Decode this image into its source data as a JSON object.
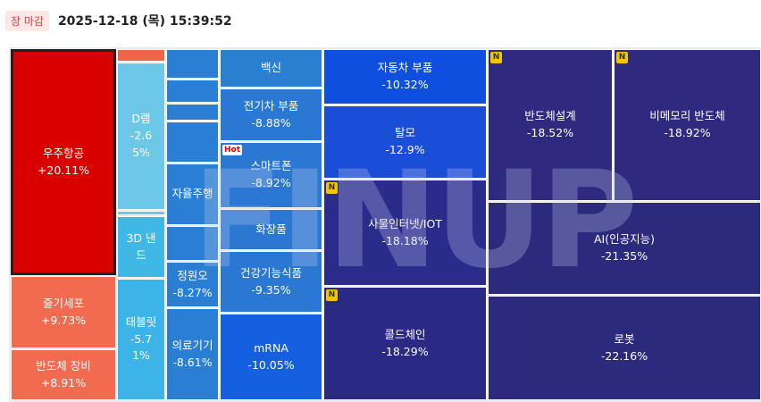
{
  "header": {
    "status": "장 마감",
    "datetime": "2025-12-18 (목) 15:39:52"
  },
  "watermark": "FINUP",
  "tiles": [
    {
      "name": "우주항공",
      "change": "+20.11%"
    },
    {
      "name": "줄기세포",
      "change": "+9.73%"
    },
    {
      "name": "반도체 장비",
      "change": "+8.91%"
    },
    {
      "name": "D램",
      "change": "-2.65%"
    },
    {
      "name": "3D 낸드"
    },
    {
      "name": "태블릿",
      "change": "-5.71%"
    },
    {
      "name": "자율주행"
    },
    {
      "name": "정원오",
      "change": "-8.27%"
    },
    {
      "name": "의료기기",
      "change": "-8.61%"
    },
    {
      "name": "백신"
    },
    {
      "name": "전기차 부품",
      "change": "-8.88%"
    },
    {
      "name": "스마트폰",
      "change": "-8.92%",
      "badge": "Hot"
    },
    {
      "name": "화장품"
    },
    {
      "name": "건강기능식품",
      "change": "-9.35%"
    },
    {
      "name": "mRNA",
      "change": "-10.05%"
    },
    {
      "name": "자동차 부품",
      "change": "-10.32%"
    },
    {
      "name": "탈모",
      "change": "-12.9%"
    },
    {
      "name": "사물인터넷/IOT",
      "change": "-18.18%",
      "badge": "N"
    },
    {
      "name": "콜드체인",
      "change": "-18.29%",
      "badge": "N"
    },
    {
      "name": "반도체설계",
      "change": "-18.52%",
      "badge": "N"
    },
    {
      "name": "비메모리 반도체",
      "change": "-18.92%",
      "badge": "N"
    },
    {
      "name": "AI(인공지능)",
      "change": "-21.35%"
    },
    {
      "name": "로봇",
      "change": "-22.16%"
    }
  ]
}
